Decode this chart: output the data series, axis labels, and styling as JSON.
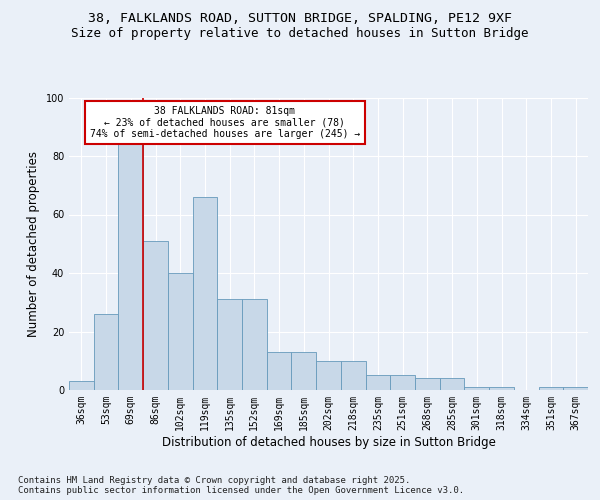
{
  "title1": "38, FALKLANDS ROAD, SUTTON BRIDGE, SPALDING, PE12 9XF",
  "title2": "Size of property relative to detached houses in Sutton Bridge",
  "xlabel": "Distribution of detached houses by size in Sutton Bridge",
  "ylabel": "Number of detached properties",
  "categories": [
    "36sqm",
    "53sqm",
    "69sqm",
    "86sqm",
    "102sqm",
    "119sqm",
    "135sqm",
    "152sqm",
    "169sqm",
    "185sqm",
    "202sqm",
    "218sqm",
    "235sqm",
    "251sqm",
    "268sqm",
    "285sqm",
    "301sqm",
    "318sqm",
    "334sqm",
    "351sqm",
    "367sqm"
  ],
  "values": [
    3,
    26,
    84,
    51,
    40,
    66,
    31,
    31,
    13,
    13,
    10,
    10,
    5,
    5,
    4,
    4,
    1,
    1,
    0,
    1,
    1
  ],
  "bar_color": "#c8d8e8",
  "bar_edge_color": "#6699bb",
  "ref_line_x": 2.5,
  "annotation_line1": "38 FALKLANDS ROAD: 81sqm",
  "annotation_line2": "← 23% of detached houses are smaller (78)",
  "annotation_line3": "74% of semi-detached houses are larger (245) →",
  "annotation_box_color": "#ffffff",
  "annotation_box_edge": "#cc0000",
  "vline_color": "#cc0000",
  "ylim": [
    0,
    100
  ],
  "background_color": "#eaf0f8",
  "plot_bg_color": "#eaf0f8",
  "footer1": "Contains HM Land Registry data © Crown copyright and database right 2025.",
  "footer2": "Contains public sector information licensed under the Open Government Licence v3.0.",
  "title_fontsize": 9.5,
  "subtitle_fontsize": 9,
  "axis_label_fontsize": 8.5,
  "tick_fontsize": 7,
  "footer_fontsize": 6.5,
  "annotation_fontsize": 7
}
